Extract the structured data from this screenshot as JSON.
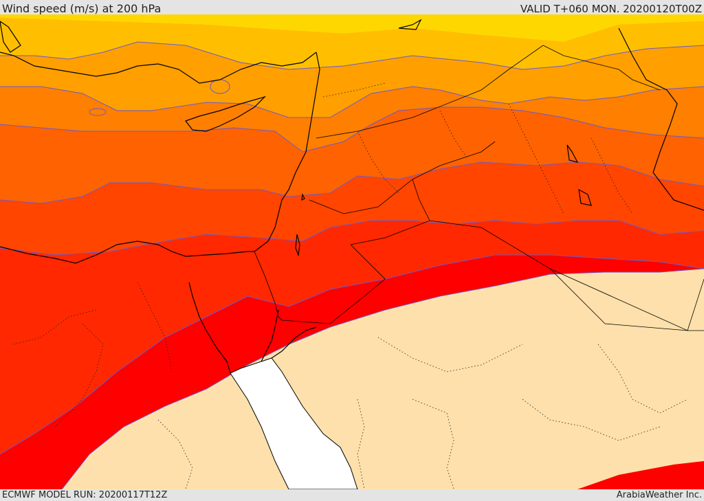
{
  "header": {
    "title": "Wind speed (m/s) at 200 hPa",
    "valid_time": "VALID T+060 MON. 20200120T00Z"
  },
  "footer": {
    "model_run": "ECMWF MODEL RUN: 20200117T12Z",
    "credit": "ArabiaWeather Inc."
  },
  "map": {
    "field": "wind speed",
    "level": "200 hPa",
    "region": "Eastern Mediterranean / Levant / Northern Arabia",
    "colors": {
      "band_weakest": "#fde0ab",
      "band_1": "#ffd700",
      "band_2": "#ffbf00",
      "band_3": "#ff9f00",
      "band_4": "#ff7f00",
      "band_5": "#ff6200",
      "band_6": "#ff4500",
      "band_7": "#ff2800",
      "band_8": "#ff0000",
      "sea_no_data": "#ffffff",
      "contour_line": "#6a5acd",
      "coastline": "#000000"
    }
  }
}
